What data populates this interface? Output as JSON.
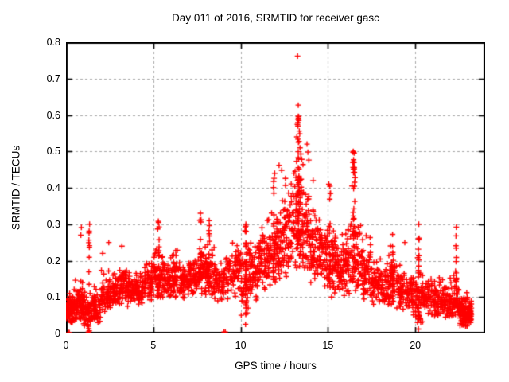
{
  "chart_data": {
    "type": "scatter",
    "title": "Day 011 of 2016, SRMTID for receiver gasc",
    "xlabel": "GPS time / hours",
    "ylabel": "SRMTID / TECUs",
    "xlim": [
      0,
      24
    ],
    "ylim": [
      0,
      0.8
    ],
    "xticks": {
      "values": [
        0,
        5,
        10,
        15,
        20
      ],
      "labels": [
        "0",
        "5",
        "10",
        "15",
        "20"
      ]
    },
    "yticks": {
      "values": [
        0,
        0.1,
        0.2,
        0.3,
        0.4,
        0.5,
        0.6,
        0.7,
        0.8
      ],
      "labels": [
        "0",
        "0.1",
        "0.2",
        "0.3",
        "0.4",
        "0.5",
        "0.6",
        "0.7",
        "0.8"
      ]
    },
    "grid": {
      "show": true,
      "color": "#a8a8a8",
      "dash": [
        3,
        3
      ]
    },
    "axis_color": "#000000",
    "background": "#ffffff",
    "marker": {
      "shape": "plus",
      "color": "#ff0000",
      "size": 7
    },
    "legend": {
      "show": false
    },
    "seed": 20160111,
    "series": [
      {
        "name": "SRMTID",
        "distribution_bins": [
          [
            0.0,
            0.5,
            0.03,
            0.07,
            0.13,
            80
          ],
          [
            0.5,
            1.0,
            0.04,
            0.08,
            0.16,
            70
          ],
          [
            1.0,
            1.5,
            0.01,
            0.06,
            0.13,
            60
          ],
          [
            1.5,
            2.0,
            0.03,
            0.07,
            0.13,
            55
          ],
          [
            2.0,
            2.5,
            0.06,
            0.11,
            0.18,
            55
          ],
          [
            2.5,
            3.0,
            0.07,
            0.12,
            0.18,
            55
          ],
          [
            3.0,
            3.5,
            0.08,
            0.13,
            0.2,
            55
          ],
          [
            3.5,
            4.0,
            0.07,
            0.12,
            0.17,
            50
          ],
          [
            4.0,
            4.5,
            0.08,
            0.12,
            0.18,
            55
          ],
          [
            4.5,
            5.0,
            0.09,
            0.14,
            0.2,
            55
          ],
          [
            5.0,
            5.5,
            0.1,
            0.16,
            0.26,
            55
          ],
          [
            5.5,
            6.0,
            0.1,
            0.15,
            0.24,
            55
          ],
          [
            6.0,
            6.5,
            0.1,
            0.16,
            0.24,
            55
          ],
          [
            6.5,
            7.0,
            0.09,
            0.14,
            0.2,
            50
          ],
          [
            7.0,
            7.5,
            0.1,
            0.15,
            0.22,
            55
          ],
          [
            7.5,
            8.0,
            0.1,
            0.17,
            0.26,
            55
          ],
          [
            8.0,
            8.5,
            0.1,
            0.16,
            0.26,
            55
          ],
          [
            8.5,
            9.0,
            0.08,
            0.14,
            0.2,
            45
          ],
          [
            9.0,
            9.5,
            0.09,
            0.15,
            0.22,
            40
          ],
          [
            9.5,
            10.0,
            0.1,
            0.17,
            0.25,
            50
          ],
          [
            10.0,
            10.5,
            0.05,
            0.14,
            0.28,
            50
          ],
          [
            10.5,
            11.0,
            0.09,
            0.17,
            0.27,
            55
          ],
          [
            11.0,
            11.5,
            0.12,
            0.19,
            0.3,
            55
          ],
          [
            11.5,
            12.0,
            0.12,
            0.21,
            0.34,
            55
          ],
          [
            12.0,
            12.5,
            0.14,
            0.24,
            0.38,
            60
          ],
          [
            12.5,
            13.0,
            0.15,
            0.27,
            0.43,
            60
          ],
          [
            13.0,
            13.5,
            0.18,
            0.3,
            0.52,
            65
          ],
          [
            13.5,
            14.0,
            0.18,
            0.28,
            0.48,
            60
          ],
          [
            14.0,
            14.5,
            0.14,
            0.24,
            0.38,
            55
          ],
          [
            14.5,
            15.0,
            0.12,
            0.21,
            0.32,
            55
          ],
          [
            15.0,
            15.5,
            0.1,
            0.19,
            0.33,
            55
          ],
          [
            15.5,
            16.0,
            0.1,
            0.17,
            0.28,
            50
          ],
          [
            16.0,
            16.5,
            0.11,
            0.19,
            0.35,
            55
          ],
          [
            16.5,
            17.0,
            0.11,
            0.19,
            0.33,
            55
          ],
          [
            17.0,
            17.5,
            0.09,
            0.16,
            0.27,
            55
          ],
          [
            17.5,
            18.0,
            0.08,
            0.14,
            0.24,
            50
          ],
          [
            18.0,
            18.5,
            0.08,
            0.13,
            0.22,
            50
          ],
          [
            18.5,
            19.0,
            0.07,
            0.13,
            0.25,
            50
          ],
          [
            19.0,
            19.5,
            0.06,
            0.12,
            0.2,
            50
          ],
          [
            19.5,
            20.0,
            0.05,
            0.11,
            0.18,
            50
          ],
          [
            20.0,
            20.5,
            0.03,
            0.1,
            0.22,
            50
          ],
          [
            20.5,
            21.0,
            0.05,
            0.1,
            0.16,
            45
          ],
          [
            21.0,
            21.5,
            0.04,
            0.09,
            0.16,
            50
          ],
          [
            21.5,
            22.0,
            0.04,
            0.09,
            0.15,
            50
          ],
          [
            22.0,
            22.5,
            0.04,
            0.09,
            0.18,
            55
          ],
          [
            22.5,
            23.0,
            0.02,
            0.06,
            0.12,
            85
          ],
          [
            23.0,
            23.22,
            0.03,
            0.06,
            0.1,
            50
          ]
        ],
        "vertical_columns": [
          [
            13.33,
            0.25,
            0.6,
            40,
            0.1
          ],
          [
            16.48,
            0.2,
            0.5,
            30,
            0.06
          ],
          [
            10.3,
            0.02,
            0.3,
            25,
            0.04
          ],
          [
            20.2,
            0.01,
            0.26,
            22,
            0.04
          ],
          [
            22.35,
            0.08,
            0.29,
            15,
            0.03
          ],
          [
            11.9,
            0.15,
            0.44,
            16,
            0.05
          ],
          [
            15.1,
            0.12,
            0.42,
            16,
            0.05
          ],
          [
            5.3,
            0.1,
            0.31,
            14,
            0.05
          ],
          [
            7.7,
            0.12,
            0.33,
            12,
            0.04
          ],
          [
            1.32,
            0.0,
            0.3,
            12,
            0.03
          ],
          [
            18.7,
            0.1,
            0.27,
            12,
            0.03
          ],
          [
            8.2,
            0.12,
            0.31,
            10,
            0.04
          ]
        ],
        "extreme_points": [
          [
            13.26,
            0.762
          ],
          [
            13.3,
            0.627
          ],
          [
            13.33,
            0.585
          ],
          [
            13.28,
            0.57
          ],
          [
            13.36,
            0.556
          ],
          [
            13.22,
            0.54
          ],
          [
            13.31,
            0.525
          ],
          [
            13.4,
            0.51
          ],
          [
            13.45,
            0.493
          ],
          [
            13.5,
            0.478
          ],
          [
            13.57,
            0.464
          ],
          [
            13.8,
            0.52
          ],
          [
            13.85,
            0.498
          ],
          [
            12.2,
            0.462
          ],
          [
            12.35,
            0.448
          ],
          [
            11.95,
            0.44
          ],
          [
            14.15,
            0.42
          ],
          [
            15.05,
            0.41
          ],
          [
            15.15,
            0.385
          ],
          [
            16.45,
            0.5
          ],
          [
            16.42,
            0.47
          ],
          [
            16.5,
            0.452
          ],
          [
            16.55,
            0.428
          ],
          [
            16.38,
            0.405
          ],
          [
            10.3,
            0.3
          ],
          [
            10.25,
            0.282
          ],
          [
            5.3,
            0.305
          ],
          [
            5.25,
            0.287
          ],
          [
            1.35,
            0.3
          ],
          [
            1.32,
            0.276
          ],
          [
            0.88,
            0.291
          ],
          [
            0.85,
            0.27
          ],
          [
            7.7,
            0.33
          ],
          [
            7.73,
            0.312
          ],
          [
            8.2,
            0.31
          ],
          [
            2.45,
            0.25
          ],
          [
            2.1,
            0.22
          ],
          [
            3.2,
            0.24
          ],
          [
            18.7,
            0.272
          ],
          [
            19.4,
            0.25
          ],
          [
            22.35,
            0.292
          ],
          [
            22.33,
            0.268
          ],
          [
            20.2,
            0.3
          ],
          [
            20.22,
            0.262
          ],
          [
            9.05,
            0.004
          ],
          [
            9.12,
            0.004
          ],
          [
            0.15,
            0.002
          ],
          [
            0.19,
            0.002
          ],
          [
            1.28,
            0.004
          ],
          [
            1.31,
            0.001
          ],
          [
            1.33,
            0.007
          ],
          [
            20.18,
            0.012
          ],
          [
            10.28,
            0.025
          ]
        ]
      }
    ]
  }
}
